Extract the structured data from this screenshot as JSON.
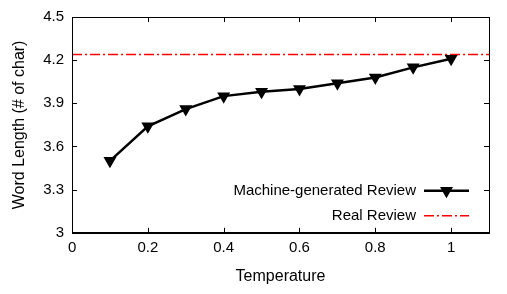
{
  "chart_data": {
    "type": "line",
    "x_label": "Temperature",
    "y_label": "Word Length (# of char)",
    "xlim": [
      0,
      1.1
    ],
    "xticks": [
      0,
      0.2,
      0.4,
      0.6,
      0.8,
      1
    ],
    "ylim": [
      3,
      4.5
    ],
    "yticks": [
      3,
      3.3,
      3.6,
      3.9,
      4.2,
      4.5
    ],
    "grid": false,
    "legend": "lower right",
    "series": [
      {
        "name": "Machine-generated Review",
        "color": "#000000",
        "marker": "triangle_down",
        "line_style": "solid",
        "x": [
          0.1,
          0.2,
          0.3,
          0.4,
          0.5,
          0.6,
          0.7,
          0.8,
          0.9,
          1.0
        ],
        "values": [
          3.5,
          3.74,
          3.86,
          3.95,
          3.98,
          4.0,
          4.04,
          4.08,
          4.15,
          4.21
        ]
      },
      {
        "name": "Real Review",
        "color": "#ff0000",
        "marker": "none",
        "line_style": "dashdot",
        "x": [
          0,
          1.1
        ],
        "values": [
          4.24,
          4.24
        ]
      }
    ]
  }
}
